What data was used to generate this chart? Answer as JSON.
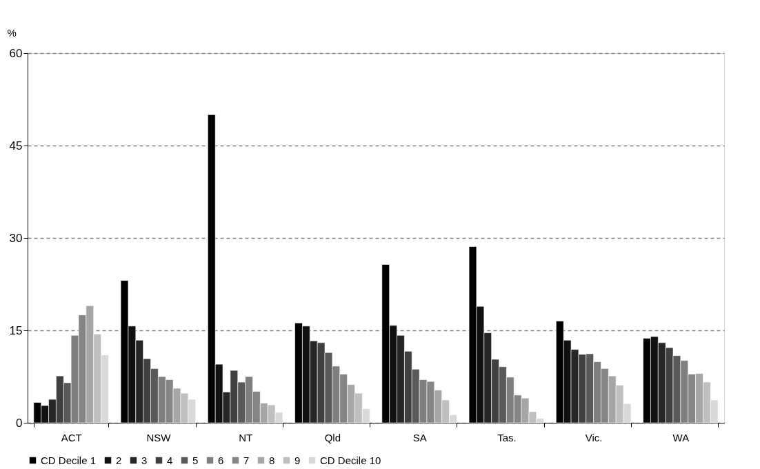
{
  "chart_data": {
    "type": "bar",
    "ylabel": "%",
    "categories": [
      "ACT",
      "NSW",
      "NT",
      "Qld",
      "SA",
      "Tas.",
      "Vic.",
      "WA"
    ],
    "series": [
      {
        "name": "CD Decile 1",
        "color": "#000000",
        "values": [
          3.3,
          23.1,
          50.0,
          16.2,
          25.7,
          28.6,
          16.5,
          13.7
        ]
      },
      {
        "name": "2",
        "color": "#111111",
        "values": [
          2.8,
          15.7,
          9.5,
          15.7,
          15.8,
          18.9,
          13.4,
          14.0
        ]
      },
      {
        "name": "3",
        "color": "#262626",
        "values": [
          3.8,
          13.4,
          5.0,
          13.3,
          14.2,
          14.6,
          11.9,
          13.0
        ]
      },
      {
        "name": "4",
        "color": "#404040",
        "values": [
          7.6,
          10.4,
          8.5,
          13.0,
          11.6,
          10.3,
          11.1,
          12.2
        ]
      },
      {
        "name": "5",
        "color": "#595959",
        "values": [
          6.5,
          8.8,
          6.6,
          11.4,
          8.7,
          9.1,
          11.2,
          10.9
        ]
      },
      {
        "name": "6",
        "color": "#7f7f7f",
        "values": [
          14.2,
          7.5,
          7.5,
          9.2,
          7.0,
          7.4,
          9.9,
          10.1
        ]
      },
      {
        "name": "7",
        "color": "#858585",
        "values": [
          17.5,
          7.0,
          5.1,
          7.9,
          6.7,
          4.5,
          8.8,
          7.9
        ]
      },
      {
        "name": "8",
        "color": "#a6a6a6",
        "values": [
          19.0,
          5.6,
          3.2,
          6.2,
          5.3,
          4.0,
          7.6,
          8.0
        ]
      },
      {
        "name": "9",
        "color": "#bfbfbf",
        "values": [
          14.4,
          4.8,
          2.9,
          4.8,
          3.7,
          1.8,
          6.1,
          6.6
        ]
      },
      {
        "name": "CD Decile 10",
        "color": "#d9d9d9",
        "values": [
          11.0,
          3.8,
          1.7,
          2.3,
          1.3,
          0.7,
          3.1,
          3.7
        ]
      }
    ],
    "ylim": [
      0,
      60
    ],
    "yticks": [
      0,
      15,
      30,
      45,
      60
    ],
    "grid": "y",
    "legend": "bottom"
  }
}
